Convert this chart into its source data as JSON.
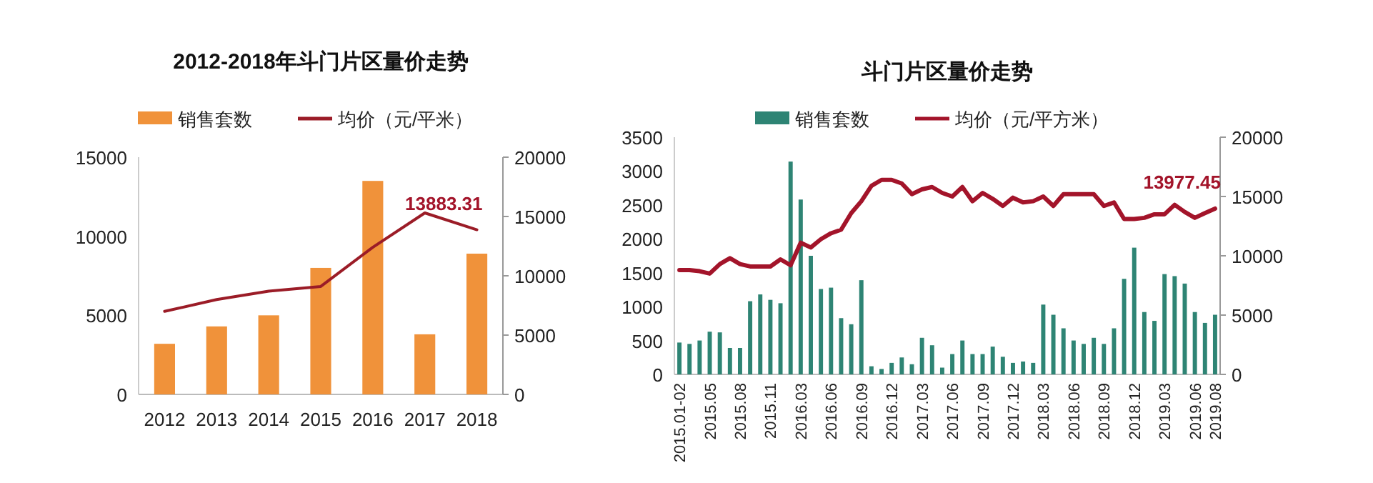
{
  "chart_data": [
    {
      "type": "bar",
      "title": "2012-2018年斗门片区量价走势",
      "categories": [
        "2012",
        "2013",
        "2014",
        "2015",
        "2016",
        "2017",
        "2018"
      ],
      "series": [
        {
          "name": "销售套数",
          "color": "#f0923a",
          "values": [
            3200,
            4300,
            5000,
            8000,
            13500,
            3800,
            8900
          ]
        },
        {
          "name": "均价（元/平米）",
          "type": "line",
          "axis": "y2",
          "color": "#9b1c27",
          "values": [
            7000,
            8000,
            8700,
            9100,
            12400,
            15300,
            13883.31
          ]
        }
      ],
      "ylim": [
        0,
        15000
      ],
      "yticks": [
        0,
        5000,
        10000,
        15000
      ],
      "y2lim": [
        0,
        20000
      ],
      "y2ticks": [
        0,
        5000,
        10000,
        15000,
        20000
      ],
      "legend": "top",
      "grid": false,
      "annotations": [
        "13883.31"
      ]
    },
    {
      "type": "bar",
      "title": "斗门片区量价走势",
      "categories": [
        "2015.01-02",
        null,
        null,
        "2015.05",
        null,
        null,
        "2015.08",
        null,
        null,
        "2015.11",
        null,
        null,
        "2016.03",
        null,
        null,
        "2016.06",
        null,
        null,
        "2016.09",
        null,
        null,
        "2016.12",
        null,
        null,
        "2017.03",
        null,
        null,
        "2017.06",
        null,
        null,
        "2017.09",
        null,
        null,
        "2017.12",
        null,
        null,
        "2018.03",
        null,
        null,
        "2018.06",
        null,
        null,
        "2018.09",
        null,
        null,
        "2018.12",
        null,
        null,
        "2019.03",
        null,
        null,
        "2019.06",
        null,
        "2019.08"
      ],
      "series": [
        {
          "name": "销售套数",
          "color": "#2e8474",
          "values": [
            470,
            450,
            500,
            630,
            620,
            390,
            390,
            1080,
            1180,
            1100,
            1050,
            3140,
            2580,
            1750,
            1260,
            1280,
            830,
            740,
            1390,
            120,
            80,
            170,
            250,
            150,
            540,
            430,
            100,
            300,
            500,
            300,
            300,
            410,
            260,
            170,
            190,
            170,
            1030,
            880,
            680,
            500,
            450,
            540,
            450,
            680,
            1410,
            1870,
            920,
            790,
            1480,
            1450,
            1340,
            920,
            760,
            880
          ]
        },
        {
          "name": "均价（元/平方米）",
          "type": "line",
          "axis": "y2",
          "color": "#a3142a",
          "values": [
            8800,
            8800,
            8700,
            8500,
            9300,
            9800,
            9300,
            9100,
            9100,
            9100,
            9700,
            9200,
            11100,
            10700,
            11400,
            11900,
            12200,
            13600,
            14600,
            15900,
            16400,
            16400,
            16100,
            15200,
            15600,
            15800,
            15300,
            15000,
            15800,
            14600,
            15300,
            14800,
            14200,
            14900,
            14500,
            14600,
            15000,
            14200,
            15200,
            15200,
            15200,
            15200,
            14200,
            14500,
            13100,
            13100,
            13200,
            13500,
            13500,
            14300,
            13700,
            13200,
            13600,
            13977.45
          ]
        }
      ],
      "ylim": [
        0,
        3500
      ],
      "yticks": [
        0,
        500,
        1000,
        1500,
        2000,
        2500,
        3000,
        3500
      ],
      "y2lim": [
        0,
        20000
      ],
      "y2ticks": [
        0,
        5000,
        10000,
        15000,
        20000
      ],
      "legend": "top",
      "grid": false,
      "annotations": [
        "13977.45"
      ]
    }
  ]
}
